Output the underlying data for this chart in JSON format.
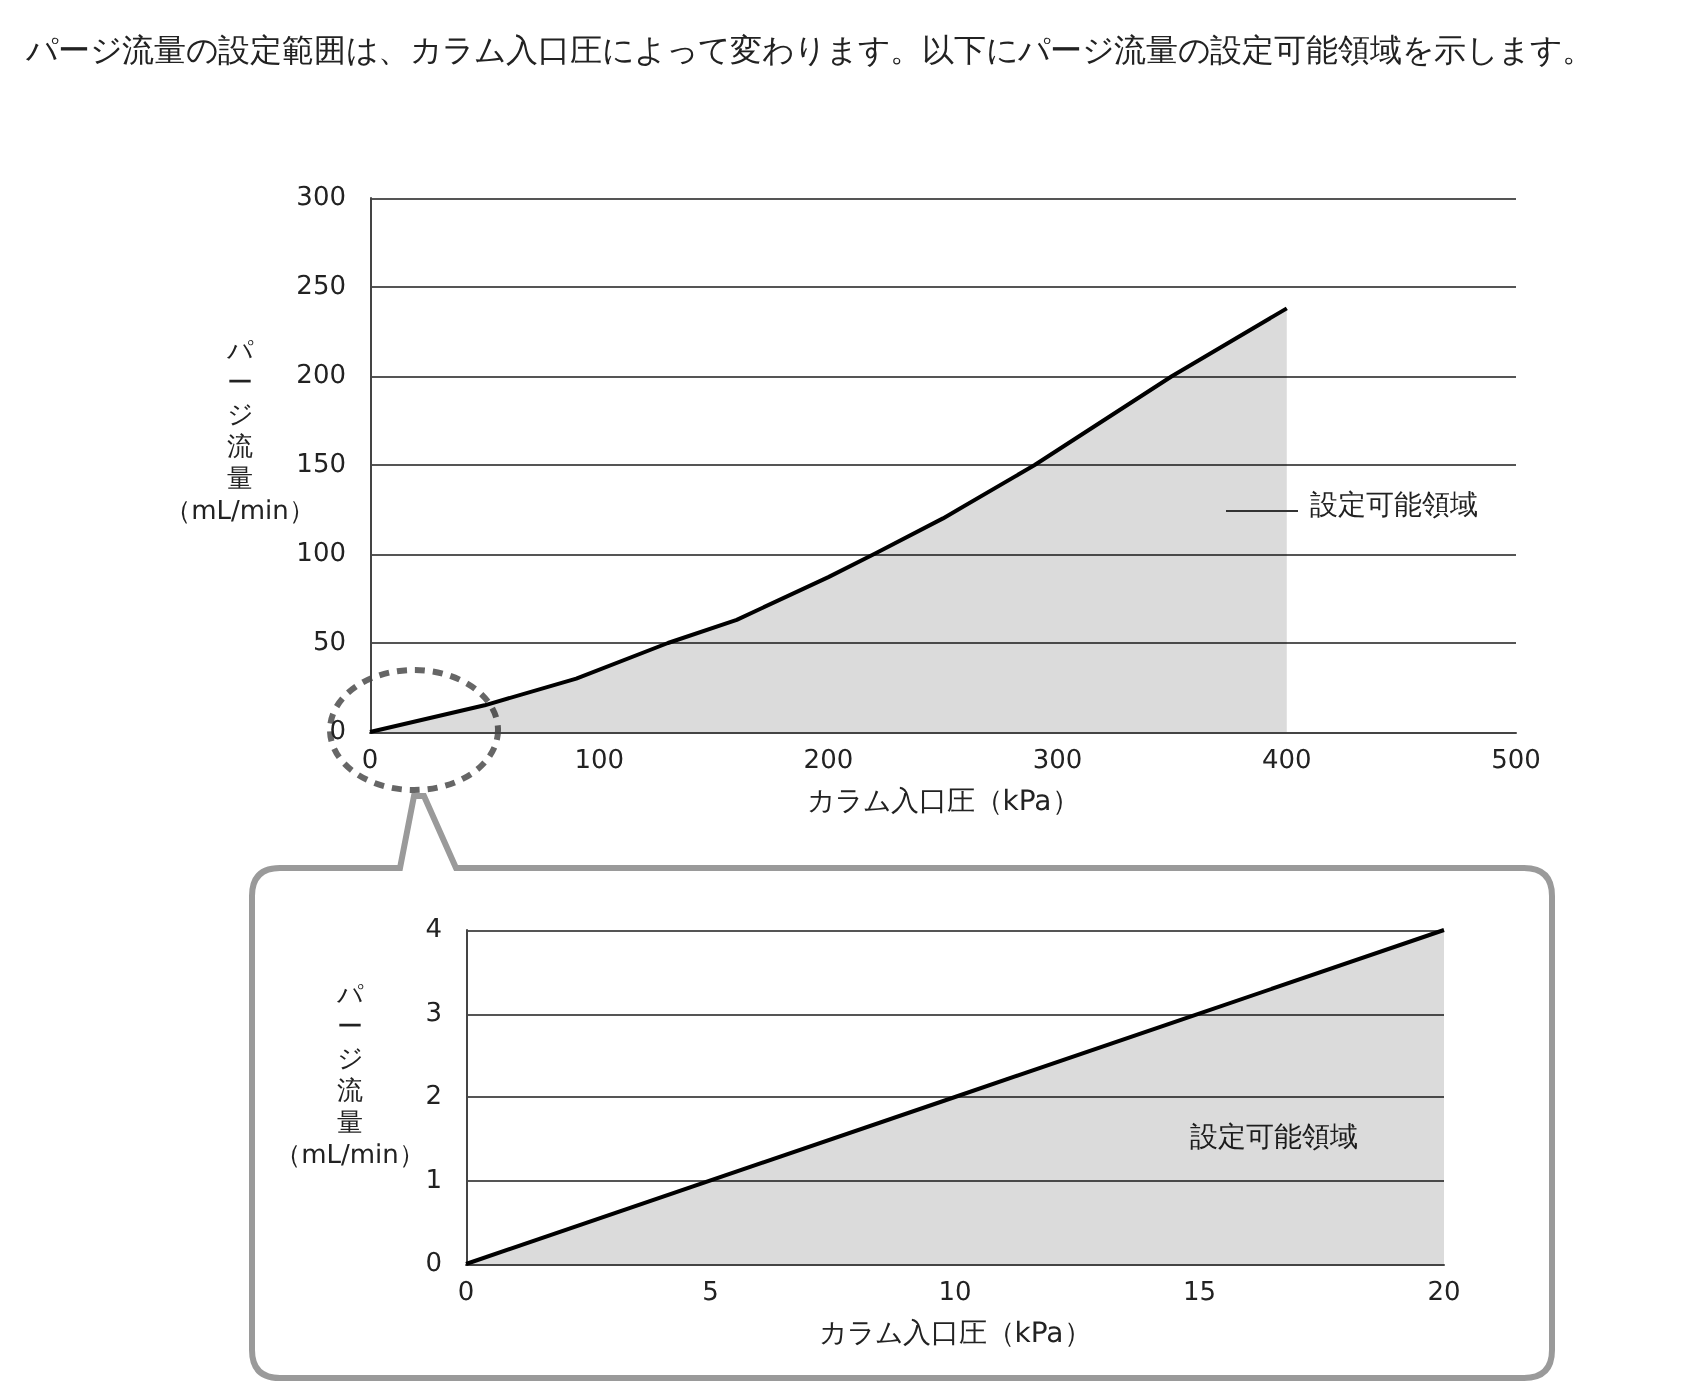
{
  "chart_data": [
    {
      "type": "area",
      "title": "パージ流量の設定範囲は、カラム入口圧によって変わります。以下にパージ流量の設定可能領域を示します。",
      "xlabel": "カラム入口圧（kPa）",
      "ylabel": "パージ流量（mL/min）",
      "annotations": [
        "設定可能領域"
      ],
      "x": [
        0,
        50,
        90,
        130,
        160,
        200,
        220,
        250,
        290,
        350,
        400
      ],
      "series": [
        {
          "color": "#000000",
          "values": [
            0,
            15,
            30,
            50,
            63,
            87,
            100,
            120,
            150,
            200,
            238
          ]
        }
      ],
      "xlim": [
        0,
        500
      ],
      "xticks": [
        0,
        100,
        200,
        300,
        400,
        500
      ],
      "ylim": [
        0,
        300
      ],
      "yticks": [
        0,
        50,
        100,
        150,
        200,
        250,
        300
      ],
      "grid": "y",
      "marker": "none"
    },
    {
      "type": "area",
      "xlabel": "カラム入口圧（kPa）",
      "ylabel": "パージ流量（mL/min）",
      "annotations": [
        "設定可能領域"
      ],
      "x": [
        0,
        10,
        20
      ],
      "series": [
        {
          "color": "#000000",
          "values": [
            0,
            2,
            4
          ]
        }
      ],
      "xlim": [
        0,
        20
      ],
      "xticks": [
        0,
        5,
        10,
        15,
        20
      ],
      "ylim": [
        0,
        4
      ],
      "yticks": [
        0,
        1,
        2,
        3,
        4
      ],
      "grid": "y",
      "marker": "none"
    }
  ]
}
